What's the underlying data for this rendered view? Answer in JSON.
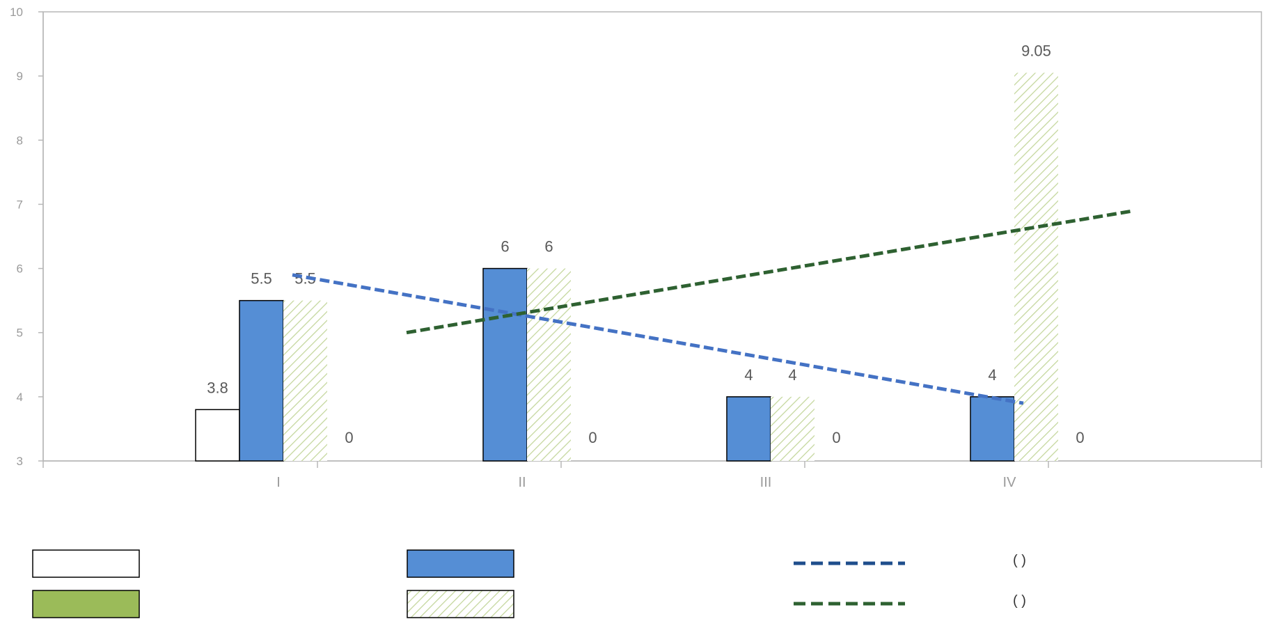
{
  "chart_data": {
    "type": "bar",
    "categories": [
      "I",
      "II",
      "III",
      "IV"
    ],
    "ylim": [
      3,
      10
    ],
    "yticks": [
      "3",
      "4",
      "5",
      "6",
      "7",
      "8",
      "9",
      "10"
    ],
    "series": [
      {
        "values": [
          3.8,
          null,
          null,
          null
        ],
        "labels": [
          "3.8",
          "",
          "",
          ""
        ],
        "fill": "#ffffff",
        "stroke": "#000000",
        "pattern": "none"
      },
      {
        "values": [
          5.5,
          6,
          4,
          4
        ],
        "labels": [
          "5.5",
          "6",
          "4",
          "4"
        ],
        "fill": "#558ed5",
        "stroke": "#000000",
        "pattern": "none"
      },
      {
        "values": [
          5.5,
          6,
          4,
          9.05
        ],
        "labels": [
          "5.5",
          "6",
          "4",
          "9.05"
        ],
        "fill": "#d7e4bd",
        "stroke": "none",
        "pattern": "diagonal-hatch"
      },
      {
        "values": [
          0,
          0,
          0,
          0
        ],
        "labels": [
          "0",
          "0",
          "0",
          "0"
        ],
        "fill": "#9bbb59",
        "stroke": "#000000",
        "pattern": "none"
      }
    ],
    "trendlines": [
      {
        "color": "#4472c4",
        "style": "dashed",
        "from": 5.9,
        "to": 3.9
      },
      {
        "color": "#2e6131",
        "style": "dashed",
        "from": 5.0,
        "to": 6.9
      }
    ],
    "legend": {
      "placement": "bottom",
      "items": [
        {
          "swatch": "bar",
          "fill": "#ffffff",
          "pattern": "none",
          "label": ""
        },
        {
          "swatch": "bar",
          "fill": "#558ed5",
          "pattern": "none",
          "label": ""
        },
        {
          "swatch": "line",
          "color": "#1f4e8c",
          "label": "(      )"
        },
        {
          "swatch": "bar",
          "fill": "#9bbb59",
          "pattern": "none",
          "label": ""
        },
        {
          "swatch": "bar",
          "fill": "#d7e4bd",
          "pattern": "diagonal-hatch",
          "label": ""
        },
        {
          "swatch": "line",
          "color": "#2e6131",
          "label": "(          )"
        }
      ]
    },
    "grid": false
  }
}
